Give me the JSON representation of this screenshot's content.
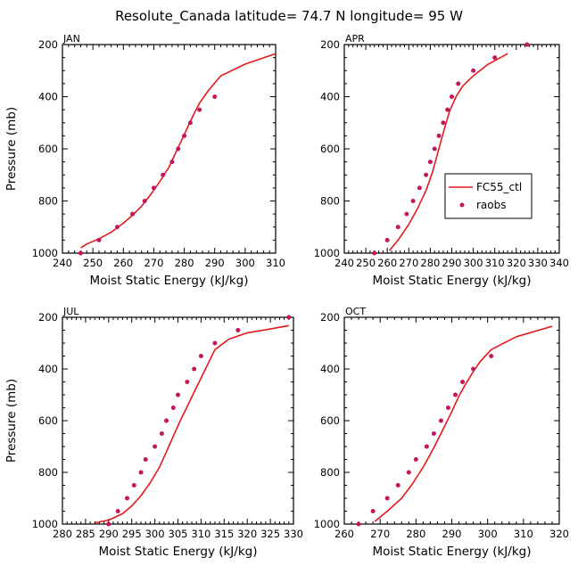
{
  "figure": {
    "title": "Resolute_Canada   latitude= 74.7 N longitude= 95 W",
    "colors": {
      "model": "#e31a1c",
      "obs": "#c2185b",
      "axis": "#000000"
    }
  },
  "legend": {
    "model_label": "FC55_ctl",
    "obs_label": "raobs"
  },
  "chart_data": [
    {
      "type": "line",
      "month": "JAN",
      "xlabel": "Moist Static Energy (kJ/kg)",
      "ylabel": "Pressure (mb)",
      "xlim": [
        240,
        310
      ],
      "ylim": [
        1000,
        200
      ],
      "xticks": [
        240,
        250,
        260,
        270,
        280,
        290,
        300,
        310
      ],
      "yticks": [
        200,
        400,
        600,
        800,
        1000
      ],
      "series": [
        {
          "name": "FC55_ctl",
          "kind": "line",
          "x": [
            246,
            248,
            252,
            256,
            260,
            263,
            266,
            269,
            272,
            275,
            277,
            279,
            281,
            283,
            285,
            288,
            292,
            300,
            310
          ],
          "y": [
            980,
            965,
            945,
            920,
            885,
            855,
            820,
            775,
            725,
            670,
            620,
            570,
            520,
            470,
            425,
            375,
            320,
            275,
            235
          ]
        },
        {
          "name": "raobs",
          "kind": "scatter",
          "x": [
            246,
            252,
            258,
            263,
            267,
            270,
            273,
            276,
            278,
            280,
            282,
            285,
            290
          ],
          "y": [
            1000,
            950,
            900,
            850,
            800,
            750,
            700,
            650,
            600,
            550,
            500,
            450,
            400
          ]
        }
      ]
    },
    {
      "type": "line",
      "month": "APR",
      "xlabel": "Moist Static Energy (kJ/kg)",
      "ylabel": "",
      "xlim": [
        240,
        340
      ],
      "ylim": [
        1000,
        200
      ],
      "xticks": [
        240,
        250,
        260,
        270,
        280,
        290,
        300,
        310,
        320,
        330,
        340
      ],
      "yticks": [
        200,
        400,
        600,
        800,
        1000
      ],
      "series": [
        {
          "name": "FC55_ctl",
          "kind": "line",
          "x": [
            261,
            265,
            270,
            274,
            278,
            281,
            283,
            285,
            287,
            289,
            292,
            295,
            300,
            307,
            316
          ],
          "y": [
            990,
            950,
            890,
            830,
            760,
            690,
            630,
            570,
            510,
            455,
            400,
            360,
            320,
            275,
            235
          ]
        },
        {
          "name": "raobs",
          "kind": "scatter",
          "x": [
            254,
            260,
            265,
            269,
            272,
            275,
            278,
            280,
            282,
            284,
            286,
            288,
            290,
            293,
            300,
            310,
            325
          ],
          "y": [
            1000,
            950,
            900,
            850,
            800,
            750,
            700,
            650,
            600,
            550,
            500,
            450,
            400,
            350,
            300,
            250,
            200
          ]
        }
      ]
    },
    {
      "type": "line",
      "month": "JUL",
      "xlabel": "Moist Static Energy (kJ/kg)",
      "ylabel": "Pressure (mb)",
      "xlim": [
        280,
        330
      ],
      "ylim": [
        1000,
        200
      ],
      "xticks": [
        280,
        285,
        290,
        295,
        300,
        305,
        310,
        315,
        320,
        325,
        330
      ],
      "yticks": [
        200,
        400,
        600,
        800,
        1000
      ],
      "series": [
        {
          "name": "FC55_ctl",
          "kind": "line",
          "x": [
            287,
            290,
            293,
            295,
            297,
            299,
            301,
            302.5,
            304,
            305.5,
            307,
            308.5,
            310,
            311.5,
            313,
            316,
            320,
            325,
            329
          ],
          "y": [
            995,
            985,
            960,
            930,
            890,
            840,
            780,
            720,
            660,
            600,
            545,
            490,
            435,
            380,
            325,
            285,
            260,
            245,
            232
          ]
        },
        {
          "name": "raobs",
          "kind": "scatter",
          "x": [
            290,
            292,
            294,
            295.5,
            297,
            298,
            300,
            301.5,
            302.5,
            304,
            305,
            307,
            308.5,
            310,
            313,
            318,
            329
          ],
          "y": [
            1000,
            950,
            900,
            850,
            800,
            750,
            700,
            650,
            600,
            550,
            500,
            450,
            400,
            350,
            300,
            250,
            200
          ]
        }
      ]
    },
    {
      "type": "line",
      "month": "OCT",
      "xlabel": "Moist Static Energy (kJ/kg)",
      "ylabel": "",
      "xlim": [
        260,
        320
      ],
      "ylim": [
        1000,
        200
      ],
      "xticks": [
        260,
        270,
        280,
        290,
        300,
        310,
        320
      ],
      "yticks": [
        200,
        400,
        600,
        800,
        1000
      ],
      "series": [
        {
          "name": "FC55_ctl",
          "kind": "line",
          "x": [
            268.5,
            272,
            276,
            279,
            282,
            285,
            287.5,
            290,
            292,
            294,
            296,
            298,
            301,
            308,
            318
          ],
          "y": [
            990,
            950,
            900,
            845,
            780,
            705,
            635,
            565,
            505,
            455,
            410,
            370,
            325,
            275,
            235
          ]
        },
        {
          "name": "raobs",
          "kind": "scatter",
          "x": [
            264,
            268,
            272,
            275,
            278,
            280,
            283,
            285,
            287,
            289,
            291,
            293,
            296,
            301
          ],
          "y": [
            1000,
            950,
            900,
            850,
            800,
            750,
            700,
            650,
            600,
            550,
            500,
            450,
            400,
            350
          ]
        }
      ]
    }
  ]
}
